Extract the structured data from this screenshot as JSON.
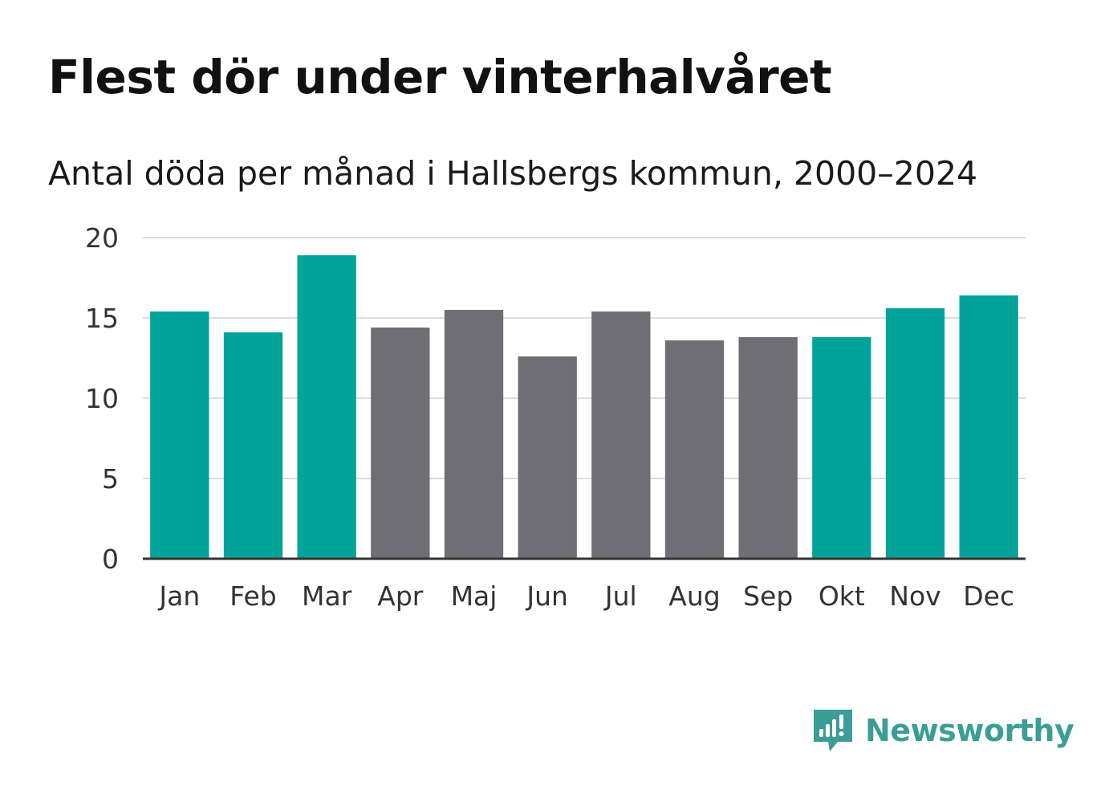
{
  "chart_data": {
    "type": "bar",
    "title": "Flest dör under vinterhalvåret",
    "subtitle": "Antal döda per månad i Hallsbergs kommun, 2000–2024",
    "xlabel": "",
    "ylabel": "",
    "ylim": [
      0,
      20
    ],
    "yticks": [
      0,
      5,
      10,
      15,
      20
    ],
    "grid": true,
    "categories": [
      "Jan",
      "Feb",
      "Mar",
      "Apr",
      "Maj",
      "Jun",
      "Jul",
      "Aug",
      "Sep",
      "Okt",
      "Nov",
      "Dec"
    ],
    "values": [
      15.4,
      14.1,
      18.9,
      14.4,
      15.5,
      12.6,
      15.4,
      13.6,
      13.8,
      13.8,
      15.6,
      16.4
    ],
    "highlight": [
      true,
      true,
      true,
      false,
      false,
      false,
      false,
      false,
      false,
      true,
      true,
      true
    ],
    "colors": {
      "highlight": "#00a398",
      "normal": "#6e6e74"
    }
  },
  "brand": {
    "name": "Newsworthy",
    "icon": "newsworthy-logo-icon",
    "color": "#3a9e96"
  }
}
